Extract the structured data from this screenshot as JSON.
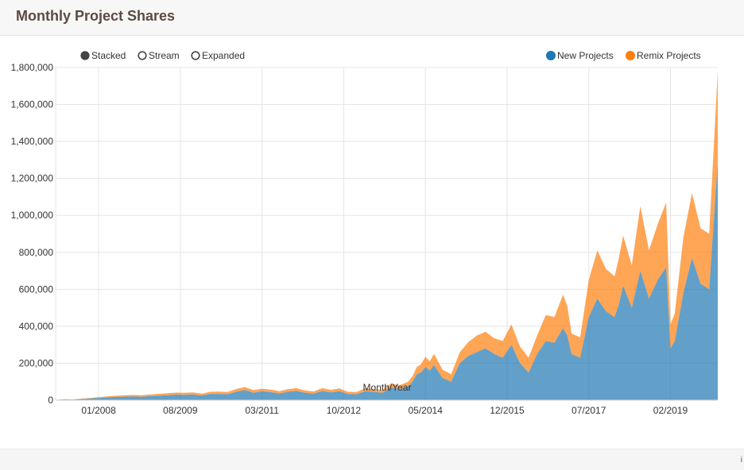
{
  "page": {
    "title": "Monthly Project Shares",
    "info_icon": "i"
  },
  "controls": {
    "options": [
      {
        "label": "Stacked",
        "selected": true
      },
      {
        "label": "Stream",
        "selected": false
      },
      {
        "label": "Expanded",
        "selected": false
      }
    ]
  },
  "colors": {
    "new": "#1f77b4",
    "remix": "#ff7f0e",
    "selected_dot": "#444444"
  },
  "chart_data": {
    "type": "area",
    "stacked": true,
    "title": "Monthly Project Shares",
    "xlabel": "Month/Year",
    "ylabel": "",
    "ylim": [
      0,
      1800000
    ],
    "xlim": [
      "2007-03",
      "2020-01"
    ],
    "x_ticks": [
      "01/2008",
      "08/2009",
      "03/2011",
      "10/2012",
      "05/2014",
      "12/2015",
      "07/2017",
      "02/2019"
    ],
    "y_ticks": [
      "0",
      "200,000",
      "400,000",
      "600,000",
      "800,000",
      "1,000,000",
      "1,200,000",
      "1,400,000",
      "1,600,000",
      "1,800,000"
    ],
    "grid": true,
    "legend_position": "top-right",
    "x": [
      "2007-03",
      "2007-05",
      "2007-07",
      "2007-09",
      "2007-11",
      "2008-01",
      "2008-03",
      "2008-05",
      "2008-07",
      "2008-09",
      "2008-11",
      "2009-01",
      "2009-03",
      "2009-05",
      "2009-07",
      "2009-09",
      "2009-11",
      "2010-01",
      "2010-03",
      "2010-05",
      "2010-07",
      "2010-09",
      "2010-11",
      "2011-01",
      "2011-03",
      "2011-05",
      "2011-07",
      "2011-09",
      "2011-11",
      "2012-01",
      "2012-03",
      "2012-05",
      "2012-07",
      "2012-09",
      "2012-11",
      "2013-01",
      "2013-03",
      "2013-05",
      "2013-07",
      "2013-09",
      "2013-11",
      "2014-01",
      "2014-02",
      "2014-03",
      "2014-04",
      "2014-05",
      "2014-06",
      "2014-07",
      "2014-09",
      "2014-11",
      "2015-01",
      "2015-03",
      "2015-05",
      "2015-07",
      "2015-09",
      "2015-11",
      "2016-01",
      "2016-03",
      "2016-05",
      "2016-07",
      "2016-09",
      "2016-11",
      "2017-01",
      "2017-02",
      "2017-03",
      "2017-05",
      "2017-07",
      "2017-09",
      "2017-11",
      "2018-01",
      "2018-02",
      "2018-03",
      "2018-05",
      "2018-07",
      "2018-09",
      "2018-11",
      "2019-01",
      "2019-02",
      "2019-03",
      "2019-05",
      "2019-07",
      "2019-09",
      "2019-11",
      "2020-01"
    ],
    "series": [
      {
        "name": "New Projects",
        "values": [
          1000,
          4000,
          3000,
          6000,
          9000,
          12000,
          15000,
          18000,
          19000,
          20000,
          18000,
          22000,
          24000,
          27000,
          30000,
          29000,
          31000,
          25000,
          33000,
          34000,
          32000,
          45000,
          55000,
          40000,
          48000,
          43000,
          36000,
          45000,
          50000,
          40000,
          35000,
          50000,
          42000,
          48000,
          33000,
          32000,
          48000,
          45000,
          40000,
          70000,
          60000,
          75000,
          100000,
          140000,
          150000,
          180000,
          160000,
          190000,
          120000,
          100000,
          200000,
          240000,
          260000,
          280000,
          250000,
          230000,
          300000,
          200000,
          150000,
          250000,
          320000,
          310000,
          390000,
          350000,
          250000,
          230000,
          450000,
          550000,
          480000,
          450000,
          520000,
          620000,
          500000,
          700000,
          550000,
          650000,
          720000,
          280000,
          320000,
          580000,
          770000,
          630000,
          600000,
          1290000
        ]
      },
      {
        "name": "Remix Projects",
        "values": [
          0,
          1000,
          1000,
          2000,
          3000,
          4000,
          5000,
          6000,
          7000,
          8000,
          8000,
          9000,
          10000,
          11000,
          11000,
          11000,
          11000,
          10000,
          12000,
          12000,
          12000,
          15000,
          16000,
          14000,
          14000,
          14000,
          12000,
          14000,
          15000,
          12000,
          12000,
          15000,
          14000,
          15000,
          12000,
          12000,
          15000,
          15000,
          14000,
          20000,
          20000,
          25000,
          30000,
          40000,
          45000,
          55000,
          50000,
          60000,
          45000,
          40000,
          60000,
          75000,
          90000,
          90000,
          85000,
          90000,
          110000,
          90000,
          80000,
          100000,
          140000,
          140000,
          180000,
          160000,
          110000,
          110000,
          200000,
          260000,
          230000,
          220000,
          250000,
          270000,
          230000,
          350000,
          260000,
          300000,
          350000,
          130000,
          150000,
          300000,
          350000,
          300000,
          300000,
          490000
        ]
      }
    ]
  }
}
